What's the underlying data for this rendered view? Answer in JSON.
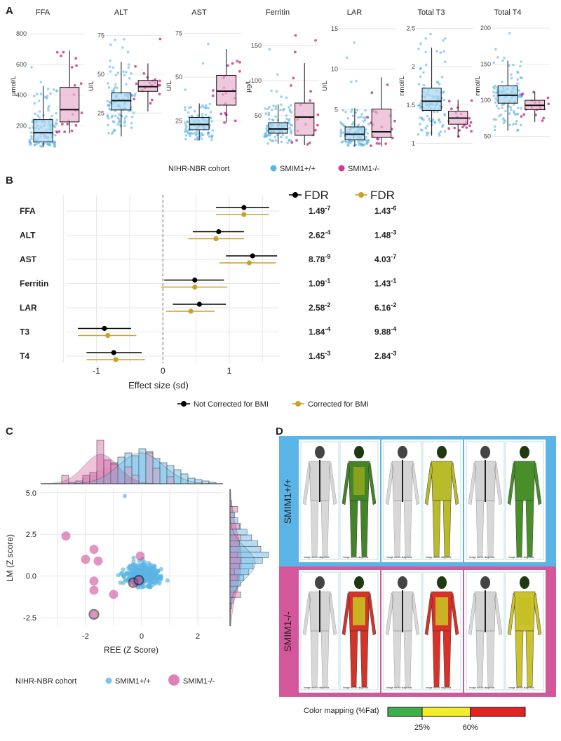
{
  "panels": {
    "a": "A",
    "b": "B",
    "c": "C",
    "d": "D"
  },
  "colors": {
    "wt": "#5ab4e5",
    "ko": "#cc3d8f",
    "wt_box": "#a9d6f0",
    "ko_box": "#eab1cf",
    "uncorrected": "#000000",
    "corrected": "#c9a227",
    "d_wt_frame": "#5ab4e5",
    "d_ko_frame": "#d5579b"
  },
  "chart_data": [
    {
      "id": "A",
      "type": "box",
      "legend_title": "NIHR-NBR cohort",
      "groups": [
        "SMIM1+/+",
        "SMIM1-/-"
      ],
      "subplots": [
        {
          "title": "FFA",
          "ylabel": "µmol/L",
          "ylim": [
            60,
            860
          ],
          "ticks": [
            200,
            400,
            600,
            800
          ],
          "boxes": [
            {
              "q1": 95,
              "median": 155,
              "q3": 240,
              "lo": 60,
              "hi": 460
            },
            {
              "q1": 225,
              "median": 305,
              "q3": 450,
              "lo": 150,
              "hi": 690
            }
          ]
        },
        {
          "title": "ALT",
          "ylabel": "U/L",
          "ylim": [
            3,
            82
          ],
          "ticks": [
            25,
            50,
            75
          ],
          "boxes": [
            {
              "q1": 27,
              "median": 33,
              "q3": 38,
              "lo": 10,
              "hi": 58
            },
            {
              "q1": 39,
              "median": 42,
              "q3": 46,
              "lo": 26,
              "hi": 57
            }
          ]
        },
        {
          "title": "AST",
          "ylabel": "U/L",
          "ylim": [
            10,
            80
          ],
          "ticks": [
            25,
            50,
            75
          ],
          "boxes": [
            {
              "q1": 20,
              "median": 23,
              "q3": 27,
              "lo": 14,
              "hi": 35
            },
            {
              "q1": 34,
              "median": 42,
              "q3": 51,
              "lo": 24,
              "hi": 66
            }
          ]
        },
        {
          "title": "Ferritin",
          "ylabel": "µg/L",
          "ylim": [
            5,
            180
          ],
          "ticks": [
            50,
            100,
            150
          ],
          "boxes": [
            {
              "q1": 25,
              "median": 31,
              "q3": 40,
              "lo": 10,
              "hi": 66
            },
            {
              "q1": 22,
              "median": 48,
              "q3": 68,
              "lo": 8,
              "hi": 125
            }
          ]
        },
        {
          "title": "LAR",
          "ylabel": "U/L",
          "ylim": [
            0.4,
            15.5
          ],
          "ticks": [
            5,
            10,
            15
          ],
          "boxes": [
            {
              "q1": 1.3,
              "median": 2.0,
              "q3": 2.9,
              "lo": 0.5,
              "hi": 5.2
            },
            {
              "q1": 1.6,
              "median": 2.3,
              "q3": 5.1,
              "lo": 0.5,
              "hi": 9.0
            }
          ]
        },
        {
          "title": "Total T3",
          "ylabel": "nmol/L",
          "ylim": [
            0.95,
            2.55
          ],
          "ticks": [
            1.0,
            1.5,
            2.0,
            2.5
          ],
          "boxes": [
            {
              "q1": 1.43,
              "median": 1.55,
              "q3": 1.72,
              "lo": 1.1,
              "hi": 2.25
            },
            {
              "q1": 1.25,
              "median": 1.33,
              "q3": 1.42,
              "lo": 1.08,
              "hi": 1.57
            }
          ]
        },
        {
          "title": "Total T4",
          "ylabel": "nmol/L",
          "ylim": [
            35,
            205
          ],
          "ticks": [
            50,
            100,
            150,
            200
          ],
          "boxes": [
            {
              "q1": 96,
              "median": 107,
              "q3": 120,
              "lo": 58,
              "hi": 155
            },
            {
              "q1": 87,
              "median": 93,
              "q3": 100,
              "lo": 70,
              "hi": 112
            }
          ]
        }
      ]
    },
    {
      "id": "B",
      "type": "forest",
      "xlabel": "Effect size (sd)",
      "xlim": [
        -1.45,
        1.75
      ],
      "xticks": [
        -1,
        0,
        1
      ],
      "xtick_labels": [
        "-1",
        "0",
        "1"
      ],
      "fdr_header": "FDR",
      "legend": [
        "Not Corrected for BMI",
        "Corrected for BMI"
      ],
      "rows": [
        {
          "label": "FFA",
          "uncorrected": {
            "est": 1.22,
            "lo": 0.8,
            "hi": 1.6
          },
          "corrected": {
            "est": 1.22,
            "lo": 0.8,
            "hi": 1.6
          },
          "fdr_uncorrected": {
            "mant": "1.49",
            "exp": "-7"
          },
          "fdr_corrected": {
            "mant": "1.43",
            "exp": "-6"
          }
        },
        {
          "label": "ALT",
          "uncorrected": {
            "est": 0.84,
            "lo": 0.45,
            "hi": 1.22
          },
          "corrected": {
            "est": 0.8,
            "lo": 0.38,
            "hi": 1.22
          },
          "fdr_uncorrected": {
            "mant": "2.62",
            "exp": "-4"
          },
          "fdr_corrected": {
            "mant": "1.48",
            "exp": "-3"
          }
        },
        {
          "label": "AST",
          "uncorrected": {
            "est": 1.35,
            "lo": 0.95,
            "hi": 1.72
          },
          "corrected": {
            "est": 1.3,
            "lo": 0.85,
            "hi": 1.7
          },
          "fdr_uncorrected": {
            "mant": "8.78",
            "exp": "-9"
          },
          "fdr_corrected": {
            "mant": "4.03",
            "exp": "-7"
          }
        },
        {
          "label": "Ferritin",
          "uncorrected": {
            "est": 0.48,
            "lo": 0.02,
            "hi": 0.92
          },
          "corrected": {
            "est": 0.48,
            "lo": -0.03,
            "hi": 0.97
          },
          "fdr_uncorrected": {
            "mant": "1.09",
            "exp": "-1"
          },
          "fdr_corrected": {
            "mant": "1.43",
            "exp": "-1"
          }
        },
        {
          "label": "LAR",
          "uncorrected": {
            "est": 0.55,
            "lo": 0.15,
            "hi": 0.95
          },
          "corrected": {
            "est": 0.42,
            "lo": 0.05,
            "hi": 0.78
          },
          "fdr_uncorrected": {
            "mant": "2.58",
            "exp": "-2"
          },
          "fdr_corrected": {
            "mant": "6.16",
            "exp": "-2"
          }
        },
        {
          "label": "T3",
          "uncorrected": {
            "est": -0.88,
            "lo": -1.28,
            "hi": -0.48
          },
          "corrected": {
            "est": -0.83,
            "lo": -1.28,
            "hi": -0.4
          },
          "fdr_uncorrected": {
            "mant": "1.84",
            "exp": "-4"
          },
          "fdr_corrected": {
            "mant": "9.88",
            "exp": "-4"
          }
        },
        {
          "label": "T4",
          "uncorrected": {
            "est": -0.74,
            "lo": -1.15,
            "hi": -0.32
          },
          "corrected": {
            "est": -0.71,
            "lo": -1.15,
            "hi": -0.27
          },
          "fdr_uncorrected": {
            "mant": "1.45",
            "exp": "-3"
          },
          "fdr_corrected": {
            "mant": "2.84",
            "exp": "-3"
          }
        }
      ]
    },
    {
      "id": "C",
      "type": "scatter",
      "xlabel": "REE (Z Score)",
      "ylabel": "LM (Z score)",
      "xlim": [
        -3.6,
        2.9
      ],
      "ylim": [
        -3.0,
        5.2
      ],
      "xticks": [
        -2,
        0,
        2
      ],
      "yticks": [
        -2.5,
        0.0,
        2.5,
        5.0
      ],
      "ytick_labels": [
        "-2.5",
        "0.0",
        "2.5",
        "5.0"
      ],
      "legend_title": "NIHR-NBR cohort",
      "groups": [
        "SMIM1+/+",
        "SMIM1-/-"
      ],
      "ko_points": [
        {
          "x": -2.7,
          "y": 2.4,
          "ring": false
        },
        {
          "x": -1.7,
          "y": 1.6,
          "ring": false
        },
        {
          "x": -2.0,
          "y": 1.0,
          "ring": false
        },
        {
          "x": -1.55,
          "y": 0.9,
          "ring": false
        },
        {
          "x": -1.7,
          "y": -0.3,
          "ring": false
        },
        {
          "x": -1.7,
          "y": -0.85,
          "ring": false
        },
        {
          "x": -1.0,
          "y": -1.1,
          "ring": false
        },
        {
          "x": -0.05,
          "y": 1.2,
          "ring": false
        },
        {
          "x": -0.3,
          "y": -0.4,
          "ring": true
        },
        {
          "x": -0.1,
          "y": -0.25,
          "ring": true
        },
        {
          "x": -1.7,
          "y": -2.3,
          "ring": true
        }
      ]
    },
    {
      "id": "D",
      "type": "image-grid",
      "row_labels": [
        "SMIM1+/+",
        "SMIM1-/-"
      ],
      "colorbar_title": "Color mapping (%Fat)",
      "colorbar_ticks": [
        "25%",
        "60%"
      ],
      "colorbar_colors": [
        "#3db04a",
        "#f2ec2a",
        "#e32222"
      ],
      "colorbar_stops": [
        0,
        25,
        60,
        100
      ],
      "colorbar_tick_values": [
        25,
        60
      ],
      "scan_caption": "Image not for diagnosis"
    }
  ]
}
